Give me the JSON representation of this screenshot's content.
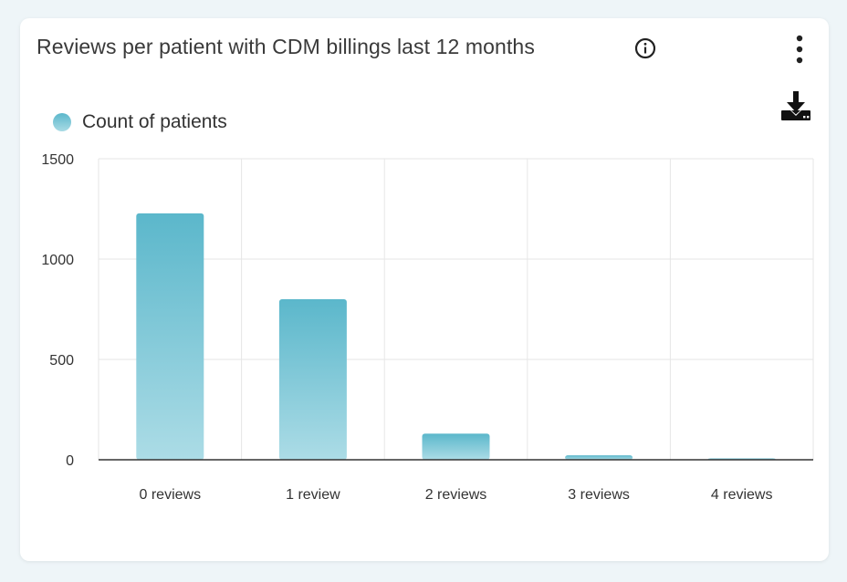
{
  "card": {
    "title": "Reviews per patient with CDM billings last 12 months",
    "info_icon": "info-circle-icon",
    "menu_icon": "more-vertical-icon",
    "download_icon": "download-icon"
  },
  "colors": {
    "bar_top": "#5bb7cb",
    "bar_bottom": "#acdce6",
    "grid": "#e6e6e6",
    "axis": "#333333"
  },
  "chart_data": {
    "type": "bar",
    "categories": [
      "0 reviews",
      "1 review",
      "2 reviews",
      "3 reviews",
      "4 reviews"
    ],
    "series": [
      {
        "name": "Count of patients",
        "values": [
          1228,
          800,
          130,
          22,
          3
        ]
      }
    ],
    "ylim": [
      0,
      1500
    ],
    "yticks": [
      0,
      500,
      1000,
      1500
    ],
    "grid": true,
    "legend": "top-left"
  }
}
